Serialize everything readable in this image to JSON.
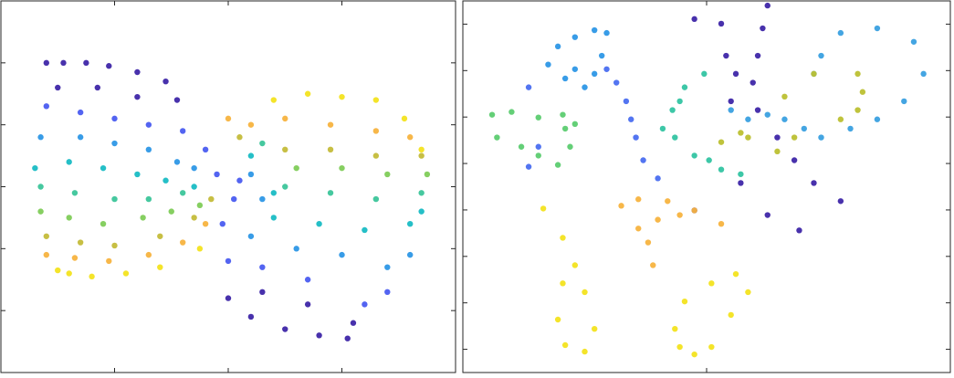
{
  "chart_data": [
    {
      "type": "scatter",
      "xlim": [
        0,
        4
      ],
      "ylim": [
        0,
        6
      ],
      "xticks": [
        1,
        2,
        3
      ],
      "yticks": [
        1,
        2,
        3,
        4,
        5
      ],
      "series": [
        {
          "color": "#3e26a8",
          "x": [
            0.4,
            0.55,
            0.75,
            0.95,
            1.2,
            1.45,
            0.5,
            0.85,
            1.2,
            1.55,
            2.0,
            2.2,
            2.5,
            2.8,
            3.05,
            2.3,
            2.7,
            3.1
          ],
          "values": [
            5.0,
            5.0,
            5.0,
            4.95,
            4.85,
            4.7,
            4.6,
            4.6,
            4.45,
            4.4,
            1.2,
            0.9,
            0.7,
            0.6,
            0.55,
            1.3,
            1.1,
            0.8
          ]
        },
        {
          "color": "#4a5cf0",
          "x": [
            0.4,
            0.7,
            1.0,
            1.3,
            1.6,
            1.8,
            1.9,
            2.0,
            2.3,
            2.7,
            3.2,
            3.4,
            1.95,
            2.05,
            2.1
          ],
          "values": [
            4.3,
            4.2,
            4.1,
            4.0,
            3.9,
            3.6,
            3.2,
            1.8,
            1.7,
            1.5,
            1.1,
            1.3,
            2.4,
            2.8,
            3.1
          ]
        },
        {
          "color": "#2d97e6",
          "x": [
            0.35,
            0.7,
            1.0,
            1.3,
            1.55,
            1.7,
            2.2,
            2.6,
            3.0,
            3.4,
            3.6,
            2.2,
            2.3
          ],
          "values": [
            3.8,
            3.8,
            3.7,
            3.6,
            3.4,
            3.3,
            2.2,
            2.0,
            1.9,
            1.7,
            1.9,
            3.2,
            2.8
          ]
        },
        {
          "color": "#19bcc4",
          "x": [
            0.3,
            0.6,
            0.9,
            1.2,
            1.45,
            1.7,
            2.4,
            2.8,
            3.2,
            3.6,
            3.7,
            2.4,
            2.2
          ],
          "values": [
            3.3,
            3.4,
            3.3,
            3.2,
            3.1,
            3.0,
            2.5,
            2.4,
            2.3,
            2.4,
            2.6,
            2.9,
            3.5
          ]
        },
        {
          "color": "#3cc59a",
          "x": [
            0.35,
            0.65,
            1.0,
            1.3,
            1.6,
            2.5,
            2.9,
            3.3,
            3.7,
            2.3
          ],
          "values": [
            3.0,
            2.9,
            2.8,
            2.8,
            2.9,
            3.0,
            2.9,
            2.8,
            2.9,
            3.7
          ]
        },
        {
          "color": "#7fcc58",
          "x": [
            0.35,
            0.6,
            0.9,
            1.25,
            1.5,
            1.75,
            2.6,
            3.0,
            3.4,
            3.75
          ],
          "values": [
            2.6,
            2.5,
            2.4,
            2.5,
            2.6,
            2.7,
            3.3,
            3.3,
            3.2,
            3.2
          ]
        },
        {
          "color": "#c4bc3a",
          "x": [
            0.4,
            0.7,
            1.0,
            1.4,
            1.7,
            1.85,
            2.5,
            2.9,
            3.3,
            3.7,
            2.1
          ],
          "values": [
            2.2,
            2.1,
            2.05,
            2.2,
            2.5,
            2.8,
            3.6,
            3.6,
            3.5,
            3.5,
            3.8
          ]
        },
        {
          "color": "#f7b33f",
          "x": [
            0.4,
            0.65,
            0.95,
            1.3,
            1.6,
            1.8,
            2.2,
            2.5,
            2.9,
            3.3,
            3.6,
            2.0
          ],
          "values": [
            1.9,
            1.85,
            1.8,
            1.9,
            2.1,
            2.4,
            4.0,
            4.1,
            4.0,
            3.9,
            3.8,
            4.1
          ]
        },
        {
          "color": "#f3e31f",
          "x": [
            0.5,
            0.6,
            0.8,
            1.1,
            1.4,
            1.75,
            2.4,
            2.7,
            3.0,
            3.3,
            3.55,
            3.7
          ],
          "values": [
            1.65,
            1.6,
            1.55,
            1.6,
            1.7,
            2.0,
            4.4,
            4.5,
            4.45,
            4.4,
            4.1,
            3.6
          ]
        }
      ]
    },
    {
      "type": "scatter",
      "xlim": [
        -1,
        1
      ],
      "ylim": [
        -0.5,
        7.5
      ],
      "xticks": [
        0
      ],
      "yticks": [
        0,
        1,
        2,
        3,
        4,
        5,
        6,
        7
      ],
      "series": [
        {
          "color": "#2d97e6",
          "x": [
            -0.65,
            -0.61,
            -0.54,
            -0.46,
            -0.41,
            -0.43,
            -0.46,
            -0.5,
            -0.54,
            -0.58
          ],
          "values": [
            6.13,
            6.52,
            6.72,
            6.87,
            6.81,
            6.32,
            5.93,
            5.64,
            6.03,
            5.83
          ]
        },
        {
          "color": "#4a6ef0",
          "x": [
            -0.41,
            -0.37,
            -0.33,
            -0.31,
            -0.29,
            -0.26,
            -0.2,
            -0.73,
            -0.69,
            -0.73
          ],
          "values": [
            6.03,
            5.74,
            5.34,
            4.95,
            4.56,
            4.07,
            3.68,
            5.64,
            4.36,
            3.93
          ]
        },
        {
          "color": "#5ccc70",
          "x": [
            -0.88,
            -0.8,
            -0.69,
            -0.59,
            -0.54,
            -0.56,
            -0.61,
            -0.69,
            -0.76,
            -0.86,
            -0.58
          ],
          "values": [
            5.05,
            5.11,
            4.99,
            5.05,
            4.85,
            4.36,
            3.97,
            4.17,
            4.36,
            4.56,
            4.75
          ]
        },
        {
          "color": "#33c4a2",
          "x": [
            -0.01,
            -0.09,
            -0.14,
            -0.13,
            -0.05,
            0.06,
            0.14,
            -0.11,
            0.01,
            -0.18
          ],
          "values": [
            5.93,
            5.64,
            5.15,
            4.56,
            4.17,
            3.87,
            3.77,
            5.34,
            4.07,
            4.75
          ]
        },
        {
          "color": "#3e26a8",
          "x": [
            0.25,
            0.23,
            0.21,
            0.19,
            0.21,
            0.29,
            0.36,
            0.44,
            0.55,
            0.1,
            0.12,
            0.08,
            -0.05,
            0.06,
            0.14,
            0.25,
            0.38,
            -0.05
          ],
          "values": [
            7.4,
            6.91,
            6.32,
            5.74,
            5.15,
            4.56,
            4.07,
            3.58,
            3.19,
            5.34,
            5.93,
            6.32,
            7.11,
            7.01,
            3.58,
            2.89,
            2.56,
            2.99
          ]
        },
        {
          "color": "#3aa0e0",
          "x": [
            0.1,
            0.17,
            0.25,
            0.32,
            0.4,
            0.47,
            0.59,
            0.7,
            0.81,
            0.89,
            0.85,
            0.7,
            0.55,
            0.47,
            0.44
          ],
          "values": [
            5.15,
            4.95,
            5.05,
            4.95,
            4.75,
            4.56,
            4.75,
            4.95,
            5.34,
            5.93,
            6.62,
            6.91,
            6.81,
            6.32,
            5.93
          ]
        },
        {
          "color": "#bcc032",
          "x": [
            0.62,
            0.64,
            0.62,
            0.55,
            0.44,
            0.36,
            0.29,
            0.17,
            0.06,
            0.14,
            0.32
          ],
          "values": [
            5.93,
            5.54,
            5.15,
            4.95,
            5.93,
            4.56,
            4.26,
            4.56,
            4.46,
            4.66,
            5.44
          ]
        },
        {
          "color": "#f7b33f",
          "x": [
            -0.35,
            -0.28,
            -0.16,
            -0.05,
            0.06,
            -0.2,
            -0.24,
            -0.22,
            -0.28,
            -0.11
          ],
          "values": [
            3.09,
            3.23,
            3.19,
            2.99,
            2.7,
            2.79,
            2.3,
            1.81,
            2.6,
            2.89
          ]
        },
        {
          "color": "#f3e31f",
          "x": [
            -0.67,
            -0.59,
            -0.54,
            -0.5,
            -0.46,
            -0.5,
            -0.58,
            -0.61,
            -0.59,
            -0.13,
            -0.09,
            0.02,
            0.12,
            0.17,
            0.1,
            0.02,
            -0.05,
            -0.11
          ],
          "values": [
            3.03,
            2.4,
            1.81,
            1.23,
            0.44,
            -0.05,
            0.09,
            0.64,
            1.42,
            0.44,
            1.03,
            1.42,
            1.62,
            1.23,
            0.74,
            0.05,
            -0.11,
            0.05
          ]
        }
      ]
    }
  ]
}
